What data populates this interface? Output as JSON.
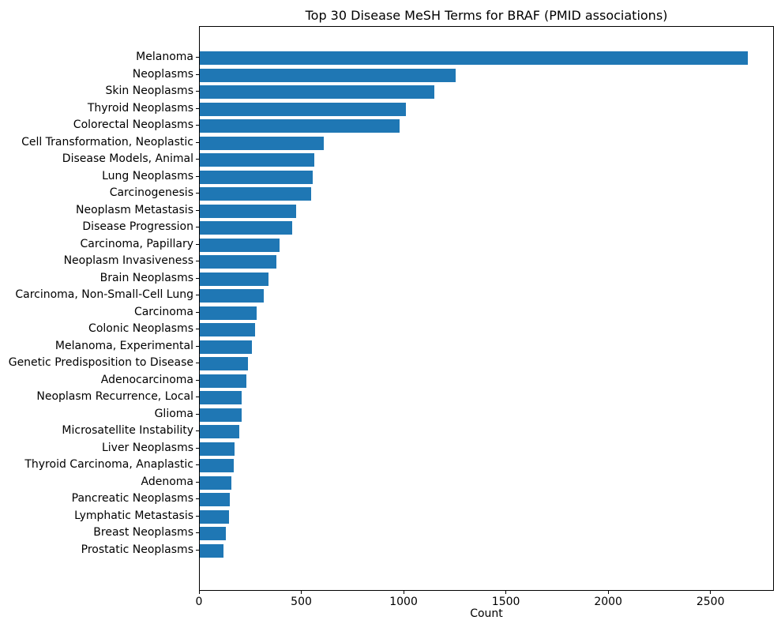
{
  "chart_data": {
    "type": "bar",
    "orientation": "horizontal",
    "title": "Top 30 Disease MeSH Terms for BRAF (PMID associations)",
    "xlabel": "Count",
    "ylabel": "",
    "xlim": [
      0,
      2810
    ],
    "xticks": [
      0,
      500,
      1000,
      1500,
      2000,
      2500
    ],
    "grid": false,
    "legend": false,
    "bar_color": "#1f77b4",
    "categories": [
      "Melanoma",
      "Neoplasms",
      "Skin Neoplasms",
      "Thyroid Neoplasms",
      "Colorectal Neoplasms",
      "Cell Transformation, Neoplastic",
      "Disease Models, Animal",
      "Lung Neoplasms",
      "Carcinogenesis",
      "Neoplasm Metastasis",
      "Disease Progression",
      "Carcinoma, Papillary",
      "Neoplasm Invasiveness",
      "Brain Neoplasms",
      "Carcinoma, Non-Small-Cell Lung",
      "Carcinoma",
      "Colonic Neoplasms",
      "Melanoma, Experimental",
      "Genetic Predisposition to Disease",
      "Adenocarcinoma",
      "Neoplasm Recurrence, Local",
      "Glioma",
      "Microsatellite Instability",
      "Liver Neoplasms",
      "Thyroid Carcinoma, Anaplastic",
      "Adenoma",
      "Pancreatic Neoplasms",
      "Lymphatic Metastasis",
      "Breast Neoplasms",
      "Prostatic Neoplasms"
    ],
    "values": [
      2677,
      1250,
      1148,
      1007,
      976,
      606,
      558,
      553,
      545,
      471,
      452,
      391,
      373,
      336,
      312,
      279,
      271,
      255,
      237,
      229,
      206,
      203,
      194,
      170,
      165,
      156,
      145,
      143,
      126,
      115
    ]
  }
}
